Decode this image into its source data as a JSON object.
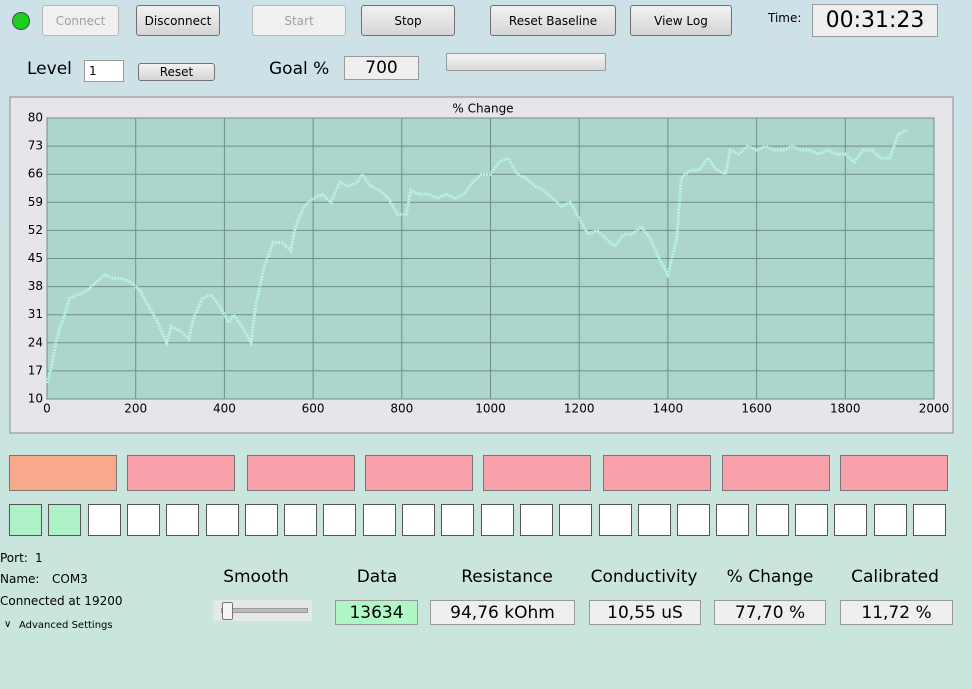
{
  "toolbar": {
    "buttons": [
      "Connect",
      "Disconnect",
      "Start",
      "Stop",
      "Reset Baseline",
      "View Log"
    ],
    "time_label": "Time:",
    "time": "00:31:23"
  },
  "level": {
    "label": "Level",
    "value": "1",
    "reset": "Reset"
  },
  "goal": {
    "label": "Goal %",
    "value": "700"
  },
  "chart_data": {
    "type": "line",
    "title": "% Change",
    "color": "#b8f2ec",
    "x": [
      0,
      10,
      20,
      30,
      40,
      50,
      70,
      90,
      110,
      130,
      150,
      170,
      190,
      210,
      230,
      250,
      270,
      280,
      300,
      320,
      330,
      350,
      370,
      390,
      410,
      420,
      440,
      460,
      470,
      490,
      510,
      530,
      550,
      560,
      580,
      600,
      620,
      640,
      660,
      680,
      700,
      710,
      730,
      750,
      770,
      790,
      810,
      820,
      840,
      860,
      880,
      900,
      920,
      940,
      960,
      980,
      1000,
      1020,
      1040,
      1060,
      1080,
      1100,
      1120,
      1140,
      1160,
      1180,
      1200,
      1220,
      1240,
      1260,
      1280,
      1300,
      1320,
      1340,
      1360,
      1380,
      1400,
      1420,
      1430,
      1450,
      1470,
      1490,
      1510,
      1530,
      1540,
      1560,
      1580,
      1600,
      1620,
      1640,
      1660,
      1680,
      1700,
      1720,
      1740,
      1760,
      1780,
      1800,
      1820,
      1840,
      1860,
      1880,
      1900,
      1920,
      1940
    ],
    "values": [
      14,
      18,
      24,
      28,
      31,
      35,
      36,
      37,
      39,
      41,
      40,
      40,
      39,
      37,
      33,
      29,
      24,
      28,
      27,
      25,
      30,
      35,
      36,
      33,
      29,
      31,
      28,
      24,
      33,
      43,
      49,
      49,
      47,
      53,
      58,
      60,
      61,
      59,
      64,
      63,
      64,
      66,
      63,
      62,
      60,
      56,
      56,
      62,
      61,
      61,
      60,
      61,
      60,
      61,
      64,
      66,
      66,
      69,
      70,
      66,
      65,
      63,
      62,
      60,
      58,
      59,
      55,
      51,
      52,
      50,
      48,
      51,
      51,
      53,
      50,
      45,
      41,
      50,
      65,
      67,
      67,
      70,
      67,
      66,
      72,
      71,
      73,
      72,
      73,
      72,
      72,
      73,
      72,
      72,
      71,
      72,
      71,
      71,
      69,
      72,
      72,
      70,
      70,
      76,
      77
    ],
    "xlim": [
      0,
      2000
    ],
    "xticks": [
      0,
      200,
      400,
      600,
      800,
      1000,
      1200,
      1400,
      1600,
      1800,
      2000
    ],
    "ylim": [
      10,
      80
    ],
    "yticks": [
      10,
      17,
      24,
      31,
      38,
      45,
      52,
      59,
      66,
      73,
      80
    ],
    "grid": true
  },
  "status": {
    "port_label": "Port:",
    "port": "1",
    "name_label": "Name:",
    "name": "COM3",
    "connected": "Connected at 19200",
    "advanced": "Advanced Settings"
  },
  "smooth": {
    "label": "Smooth"
  },
  "readouts": [
    {
      "label": "Data",
      "value": "13634"
    },
    {
      "label": "Resistance",
      "value": "94,76 kOhm"
    },
    {
      "label": "Conductivity",
      "value": "10,55 uS"
    },
    {
      "label": "% Change",
      "value": "77,70 %"
    },
    {
      "label": "Calibrated",
      "value": "11,72 %"
    }
  ]
}
